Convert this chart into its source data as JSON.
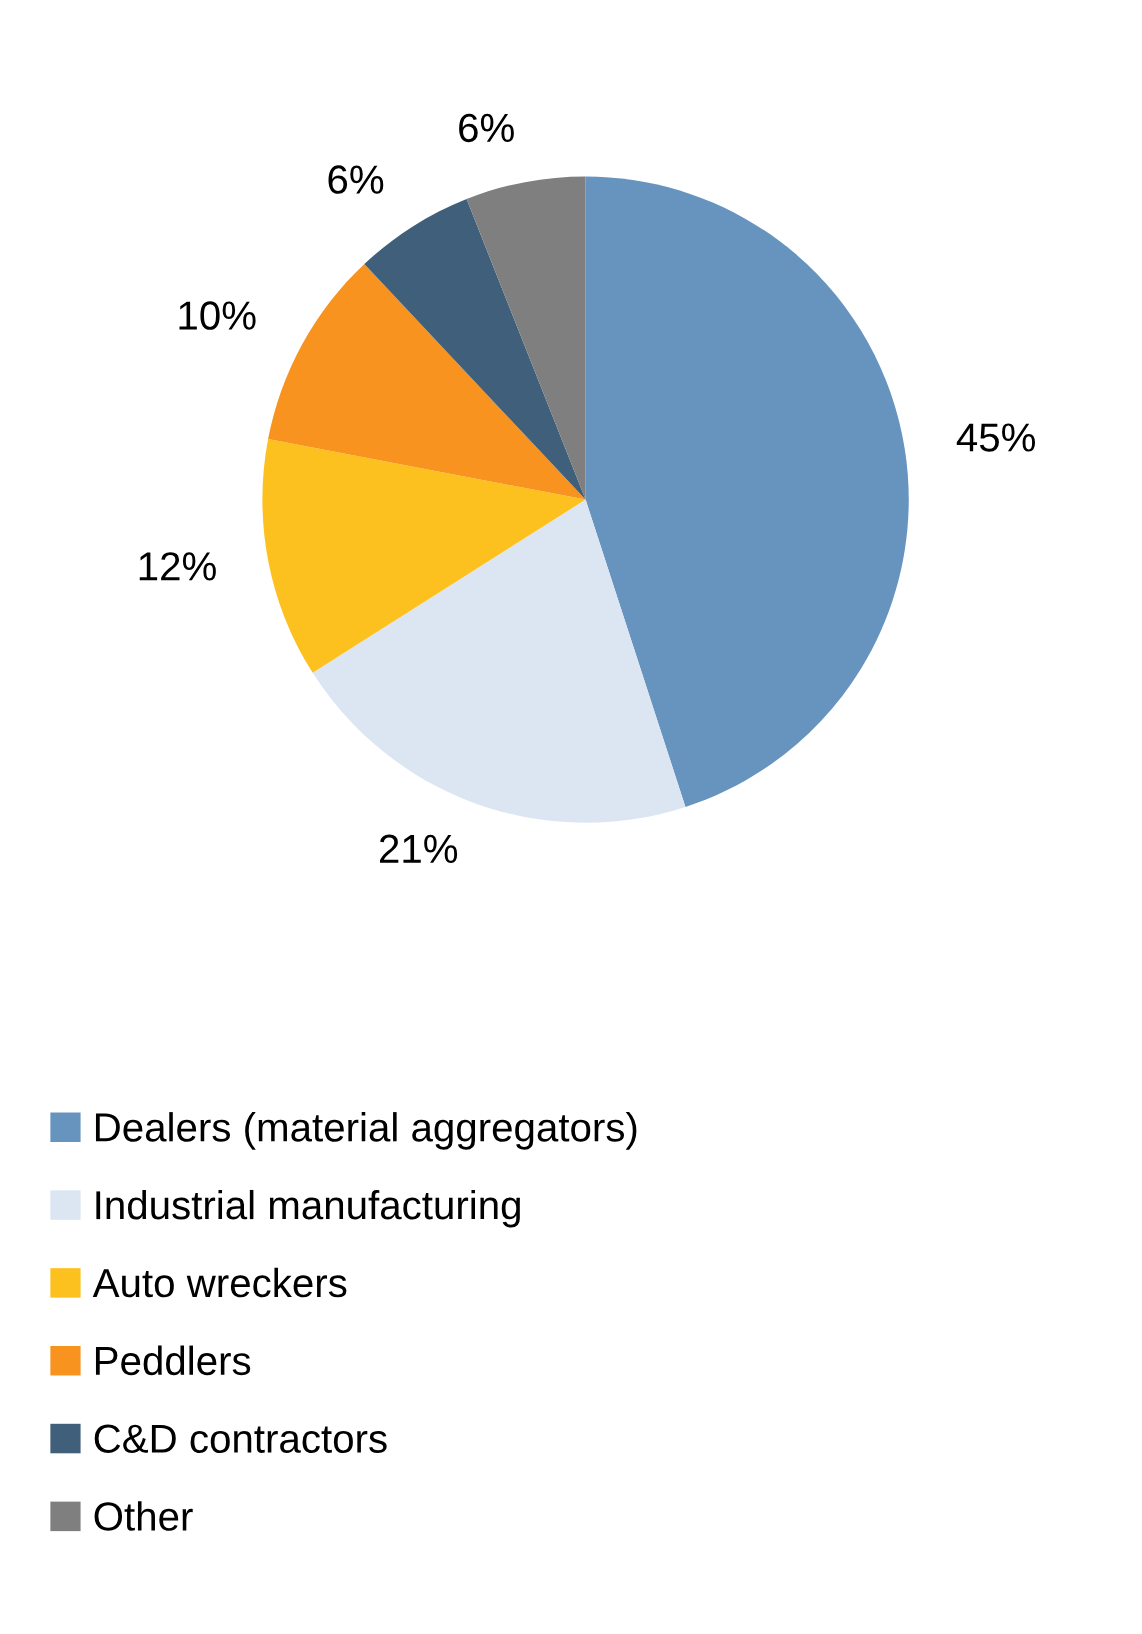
{
  "chart_data": {
    "type": "pie",
    "categories": [
      "Dealers (material aggregators)",
      "Industrial manufacturing",
      "Auto wreckers",
      "Peddlers",
      "C&D contractors",
      "Other"
    ],
    "values": [
      45,
      21,
      12,
      10,
      6,
      6
    ],
    "colors": [
      "#6694bf",
      "#dce6f2",
      "#fcc11f",
      "#f7931e",
      "#3f5f7a",
      "#7f7f7f"
    ],
    "value_labels": [
      "45%",
      "21%",
      "12%",
      "10%",
      "6%",
      "6%"
    ],
    "legend": "bottom"
  }
}
